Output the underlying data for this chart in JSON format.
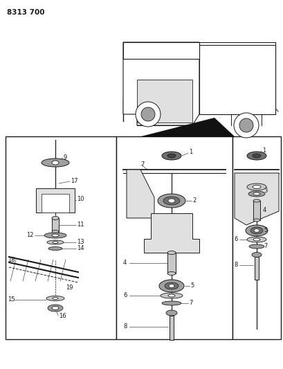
{
  "title_code": "8313 700",
  "bg_color": "#ffffff",
  "lc": "#1a1a1a",
  "gray1": "#c8c8c8",
  "gray2": "#a0a0a0",
  "gray3": "#707070",
  "gray4": "#e0e0e0",
  "fig_width": 4.1,
  "fig_height": 5.33,
  "dpi": 100,
  "title_fontsize": 7.5,
  "label_fontsize": 6.0
}
